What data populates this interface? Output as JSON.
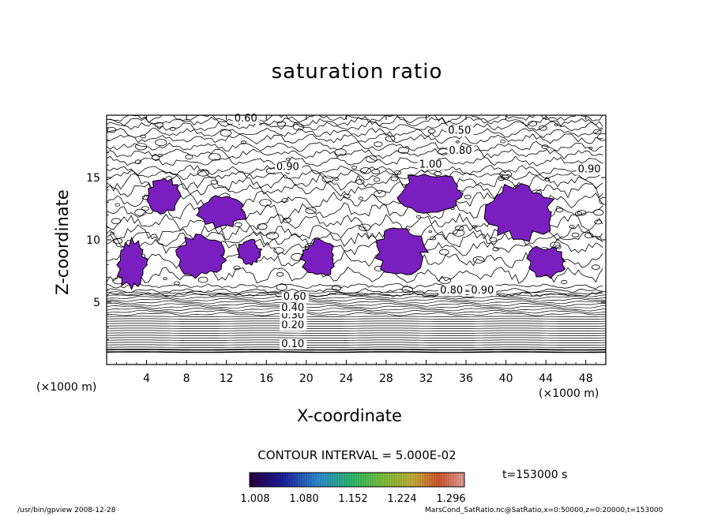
{
  "chart_data": {
    "type": "contour",
    "title": "saturation ratio",
    "xlabel": "X-coordinate",
    "ylabel": "Z-coordinate",
    "x_unit": "(×1000 m)",
    "xlim": [
      0,
      50
    ],
    "ylim": [
      0,
      20
    ],
    "x_ticks": [
      4,
      8,
      12,
      16,
      20,
      24,
      28,
      32,
      36,
      40,
      44,
      48
    ],
    "y_ticks": [
      5,
      10,
      15
    ],
    "contour_interval": "CONTOUR INTERVAL = 5.000E-02",
    "contour_labels": [
      {
        "text": "0.10",
        "x": 17.5,
        "z": 1.4
      },
      {
        "text": "0.20",
        "x": 17.5,
        "z": 2.9
      },
      {
        "text": "0.30",
        "x": 17.5,
        "z": 3.7
      },
      {
        "text": "0.40",
        "x": 17.5,
        "z": 4.3
      },
      {
        "text": "0.60",
        "x": 17.7,
        "z": 5.2
      },
      {
        "text": "0.60",
        "x": 12.8,
        "z": 19.5
      },
      {
        "text": "0.50",
        "x": 34.2,
        "z": 18.5
      },
      {
        "text": "0.80",
        "x": 34.3,
        "z": 16.9
      },
      {
        "text": "1.00",
        "x": 31.3,
        "z": 15.8
      },
      {
        "text": "0.90",
        "x": 17.0,
        "z": 15.6
      },
      {
        "text": "0.90",
        "x": 47.2,
        "z": 15.4
      },
      {
        "text": "0.90",
        "x": 36.5,
        "z": 5.7
      },
      {
        "text": "0.80",
        "x": 33.4,
        "z": 5.7
      }
    ],
    "supersaturated_regions": [
      {
        "x": [
          1,
          4
        ],
        "z": [
          6,
          10
        ]
      },
      {
        "x": [
          4,
          7.5
        ],
        "z": [
          12,
          15
        ]
      },
      {
        "x": [
          9,
          14
        ],
        "z": [
          11,
          13.5
        ]
      },
      {
        "x": [
          7,
          12
        ],
        "z": [
          7,
          10.5
        ]
      },
      {
        "x": [
          13,
          15.5
        ],
        "z": [
          8,
          10
        ]
      },
      {
        "x": [
          19.5,
          23
        ],
        "z": [
          7,
          10
        ]
      },
      {
        "x": [
          27,
          32
        ],
        "z": [
          7,
          11
        ]
      },
      {
        "x": [
          29,
          36
        ],
        "z": [
          12,
          15.5
        ]
      },
      {
        "x": [
          38,
          45
        ],
        "z": [
          10,
          14.5
        ]
      },
      {
        "x": [
          42,
          46
        ],
        "z": [
          7,
          9.5
        ]
      }
    ],
    "colorbar": {
      "tick_labels": [
        "1.008",
        "1.080",
        "1.152",
        "1.224",
        "1.296"
      ],
      "colormap": "rainbow"
    },
    "fill_color": "#7a1fbf"
  },
  "time_label": "t=153000 s",
  "footer_left": "/usr/bin/gpview  2008-12-28",
  "footer_right": "MarsCond_SatRatio.nc@SatRatio,x=0:50000,z=0:20000,t=153000"
}
